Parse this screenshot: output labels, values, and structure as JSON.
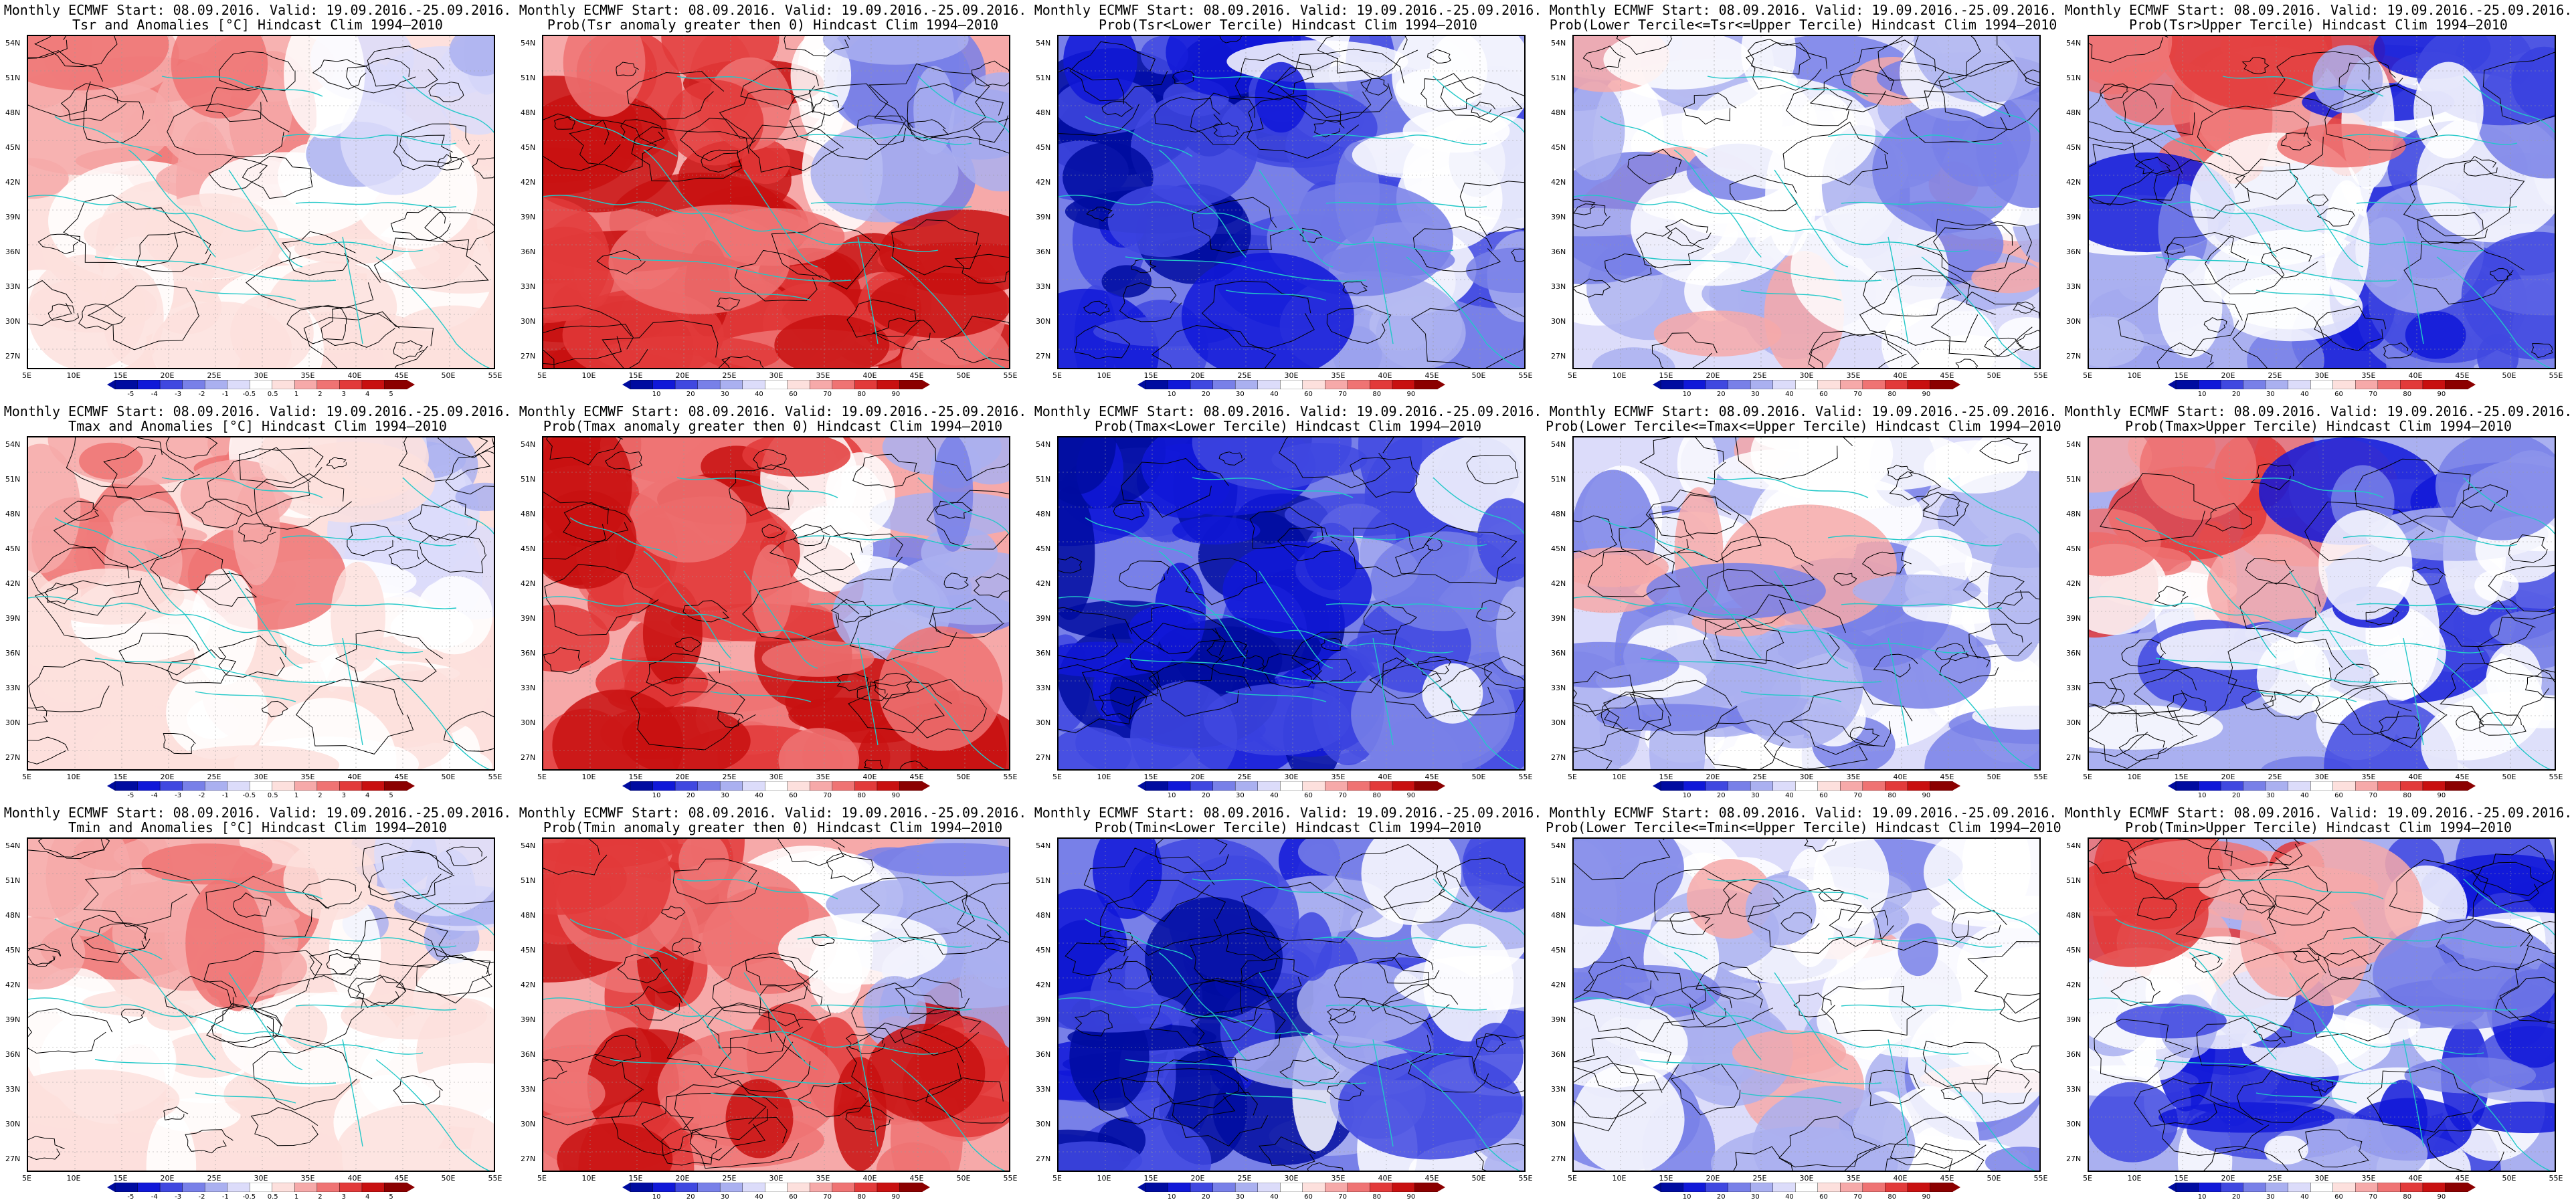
{
  "lat_labels": [
    "54N",
    "51N",
    "48N",
    "45N",
    "42N",
    "39N",
    "36N",
    "33N",
    "30N",
    "27N"
  ],
  "lon_labels": [
    "5E",
    "10E",
    "15E",
    "20E",
    "25E",
    "30E",
    "35E",
    "40E",
    "45E",
    "50E",
    "55E"
  ],
  "colorbars": {
    "anomaly": [
      "-5",
      "-4",
      "-3",
      "-2",
      "-1",
      "-0.5",
      "0.5",
      "1",
      "2",
      "3",
      "4",
      "5"
    ],
    "prob": [
      "10",
      "20",
      "30",
      "40",
      "60",
      "70",
      "80",
      "90"
    ]
  },
  "colors": {
    "coastline": "#22c8c8",
    "contour": "#000000",
    "red_scale": [
      "#ffffff",
      "#fde0dd",
      "#f6a9a9",
      "#ef7373",
      "#e23a3a",
      "#c81010",
      "#8b0000"
    ],
    "blue_scale": [
      "#ffffff",
      "#dcdcfa",
      "#aab0f0",
      "#7880e8",
      "#4048e0",
      "#1018d8",
      "#000ca0"
    ]
  },
  "panels": [
    {
      "title1": "Monthly ECMWF Start: 08.09.2016. Valid: 19.09.2016.-25.09.2016.",
      "title2": "Tsr and Anomalies [°C] Hindcast Clim 1994–2010",
      "field": "anomaly",
      "seed": 1,
      "colorbar": "anomaly"
    },
    {
      "title1": "Monthly ECMWF Start: 08.09.2016. Valid: 19.09.2016.-25.09.2016.",
      "title2": "Prob(Tsr anomaly greater then 0) Hindcast Clim 1994–2010",
      "field": "prob_above",
      "seed": 2,
      "colorbar": "prob"
    },
    {
      "title1": "Monthly ECMWF Start: 08.09.2016. Valid: 19.09.2016.-25.09.2016.",
      "title2": "Prob(Tsr<Lower Tercile) Hindcast Clim 1994–2010",
      "field": "prob_lower",
      "seed": 3,
      "colorbar": "prob"
    },
    {
      "title1": "Monthly ECMWF Start: 08.09.2016. Valid: 19.09.2016.-25.09.2016.",
      "title2": "Prob(Lower Tercile<=Tsr<=Upper Tercile) Hindcast Clim 1994–2010",
      "field": "prob_middle",
      "seed": 4,
      "colorbar": "prob"
    },
    {
      "title1": "Monthly ECMWF Start: 08.09.2016. Valid: 19.09.2016.-25.09.2016.",
      "title2": "Prob(Tsr>Upper Tercile) Hindcast Clim 1994–2010",
      "field": "prob_upper",
      "seed": 5,
      "colorbar": "prob"
    },
    {
      "title1": "Monthly ECMWF Start: 08.09.2016. Valid: 19.09.2016.-25.09.2016.",
      "title2": "Tmax and Anomalies [°C] Hindcast Clim 1994–2010",
      "field": "anomaly",
      "seed": 6,
      "colorbar": "anomaly"
    },
    {
      "title1": "Monthly ECMWF Start: 08.09.2016. Valid: 19.09.2016.-25.09.2016.",
      "title2": "Prob(Tmax anomaly greater then 0) Hindcast Clim 1994–2010",
      "field": "prob_above",
      "seed": 7,
      "colorbar": "prob"
    },
    {
      "title1": "Monthly ECMWF Start: 08.09.2016. Valid: 19.09.2016.-25.09.2016.",
      "title2": "Prob(Tmax<Lower Tercile) Hindcast Clim 1994–2010",
      "field": "prob_lower",
      "seed": 8,
      "colorbar": "prob"
    },
    {
      "title1": "Monthly ECMWF Start: 08.09.2016. Valid: 19.09.2016.-25.09.2016.",
      "title2": "Prob(Lower Tercile<=Tmax<=Upper Tercile) Hindcast Clim 1994–2010",
      "field": "prob_middle",
      "seed": 9,
      "colorbar": "prob"
    },
    {
      "title1": "Monthly ECMWF Start: 08.09.2016. Valid: 19.09.2016.-25.09.2016.",
      "title2": "Prob(Tmax>Upper Tercile) Hindcast Clim 1994–2010",
      "field": "prob_upper",
      "seed": 10,
      "colorbar": "prob"
    },
    {
      "title1": "Monthly ECMWF Start: 08.09.2016. Valid: 19.09.2016.-25.09.2016.",
      "title2": "Tmin and Anomalies [°C] Hindcast Clim 1994–2010",
      "field": "anomaly",
      "seed": 11,
      "colorbar": "anomaly"
    },
    {
      "title1": "Monthly ECMWF Start: 08.09.2016. Valid: 19.09.2016.-25.09.2016.",
      "title2": "Prob(Tmin anomaly greater then 0) Hindcast Clim 1994–2010",
      "field": "prob_above",
      "seed": 12,
      "colorbar": "prob"
    },
    {
      "title1": "Monthly ECMWF Start: 08.09.2016. Valid: 19.09.2016.-25.09.2016.",
      "title2": "Prob(Tmin<Lower Tercile) Hindcast Clim 1994–2010",
      "field": "prob_lower",
      "seed": 13,
      "colorbar": "prob"
    },
    {
      "title1": "Monthly ECMWF Start: 08.09.2016. Valid: 19.09.2016.-25.09.2016.",
      "title2": "Prob(Lower Tercile<=Tmin<=Upper Tercile) Hindcast Clim 1994–2010",
      "field": "prob_middle",
      "seed": 14,
      "colorbar": "prob"
    },
    {
      "title1": "Monthly ECMWF Start: 08.09.2016. Valid: 19.09.2016.-25.09.2016.",
      "title2": "Prob(Tmin>Upper Tercile) Hindcast Clim 1994–2010",
      "field": "prob_upper",
      "seed": 15,
      "colorbar": "prob"
    }
  ]
}
